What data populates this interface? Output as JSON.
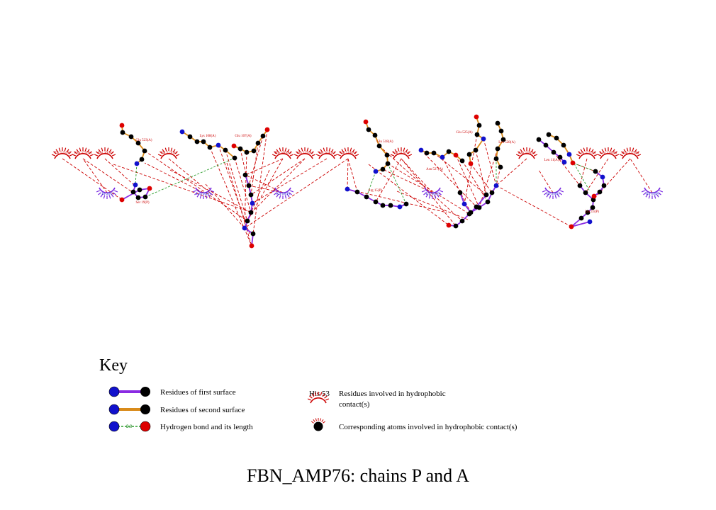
{
  "colors": {
    "carbon": "#000000",
    "nitrogen": "#1111cc",
    "oxygen": "#dd0000",
    "first_surface_bond": "#8a2be2",
    "second_surface_bond": "#d98b1a",
    "hbond": "#2a9d2a",
    "hydrophobic_a": "#cc0000",
    "hydrophobic_p": "#7a2be2",
    "contact_line": "#cc0000"
  },
  "hydrophobic_residues_chain_a": [
    {
      "label": "Thr 521(A)"
    },
    {
      "label": "Asp 372(A)"
    },
    {
      "label": "Asn 36(A)"
    },
    {
      "label": "Val 512(A)"
    },
    {
      "label": "Phe 300(A)"
    },
    {
      "label": "Ala 325(A)"
    },
    {
      "label": "Ser 204(A)"
    },
    {
      "label": "Val 310(A)"
    },
    {
      "label": "Val 312(A)"
    },
    {
      "label": "Asp 318(A)"
    },
    {
      "label": "Leu 327(A)"
    },
    {
      "label": "Leu 328(A)"
    },
    {
      "label": "Asp 327(A)"
    }
  ],
  "hydrophobic_residues_chain_p": [
    {
      "label": "Ile 2(P)"
    },
    {
      "label": "Leu 20(P)"
    },
    {
      "label": "Ala 18(P)"
    },
    {
      "label": "Trp 10(P)"
    },
    {
      "label": "Ile 25(P)"
    },
    {
      "label": "Thr 15(P)"
    }
  ],
  "ligand_residues": [
    {
      "label": "Glu 523(A)"
    },
    {
      "label": "Ser 19(P)"
    },
    {
      "label": "Lys 108(A)"
    },
    {
      "label": "Glu 107(A)"
    },
    {
      "label": "Glu 518(A)"
    },
    {
      "label": "Arg 15(P)"
    },
    {
      "label": "Asn 527(A)"
    },
    {
      "label": "Glu 525(A)"
    },
    {
      "label": "Leu 528(A)"
    },
    {
      "label": "Leu 11(A)"
    },
    {
      "label": "Lys 13(P)"
    }
  ],
  "hbond_length_example": "3.0",
  "key": {
    "title": "Key",
    "row1": "Residues of first surface",
    "row2": "Residues of second surface",
    "row3": "Hydrogen bond and its length",
    "hydrophobic_example": "His 53",
    "row4_line1": "Residues involved in hydrophobic",
    "row4_line2": "contact(s)",
    "row5": "Corresponding atoms involved in hydrophobic contact(s)"
  },
  "caption": "FBN_AMP76: chains P and A"
}
